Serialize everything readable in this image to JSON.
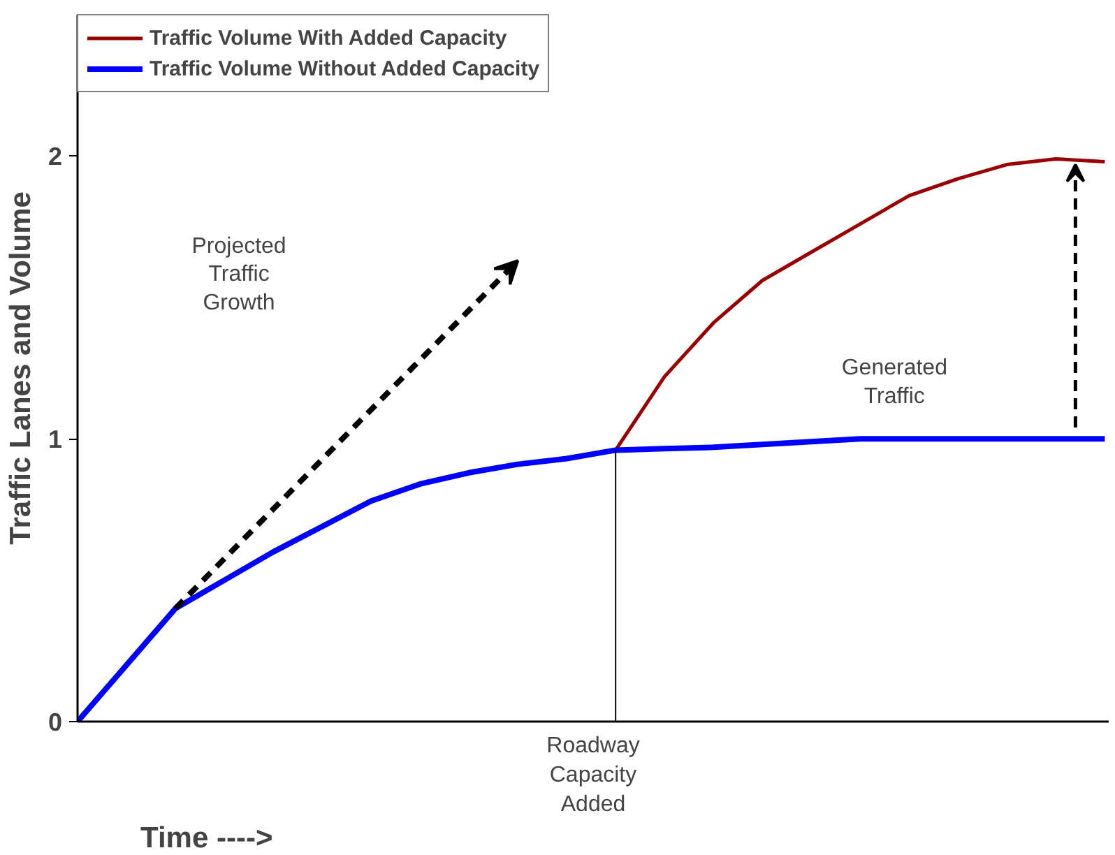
{
  "chart_data": {
    "type": "line",
    "xlabel": "Time ---->",
    "ylabel": "Traffic Lanes and Volume",
    "categories": [
      null,
      null,
      null,
      null,
      null,
      null,
      null,
      null,
      null,
      null,
      null,
      null,
      null,
      null,
      null,
      null,
      null,
      null,
      null,
      null,
      null,
      null
    ],
    "series": [
      {
        "name": "Traffic Volume With Added Capacity",
        "color": "#990000",
        "values": [
          null,
          null,
          null,
          null,
          null,
          null,
          null,
          null,
          null,
          null,
          null,
          0.96,
          1.22,
          1.41,
          1.56,
          1.66,
          1.76,
          1.86,
          1.92,
          1.97,
          1.99,
          1.98
        ]
      },
      {
        "name": "Traffic Volume Without Added Capacity",
        "color": "#0000ff",
        "values": [
          0,
          0.2,
          0.4,
          0.5,
          0.6,
          0.69,
          0.78,
          0.84,
          0.88,
          0.91,
          0.93,
          0.96,
          0.965,
          0.97,
          0.98,
          0.99,
          1.0,
          1.0,
          1.0,
          1.0,
          1.0,
          1.0
        ]
      }
    ],
    "ylim": [
      0,
      2.5
    ],
    "yticks": [
      0,
      1,
      2
    ],
    "tick_labels": "y",
    "legend": "top left",
    "annotations": [
      "Projected Traffic Growth",
      "Generated Traffic",
      "Roadway Capacity Added"
    ]
  }
}
